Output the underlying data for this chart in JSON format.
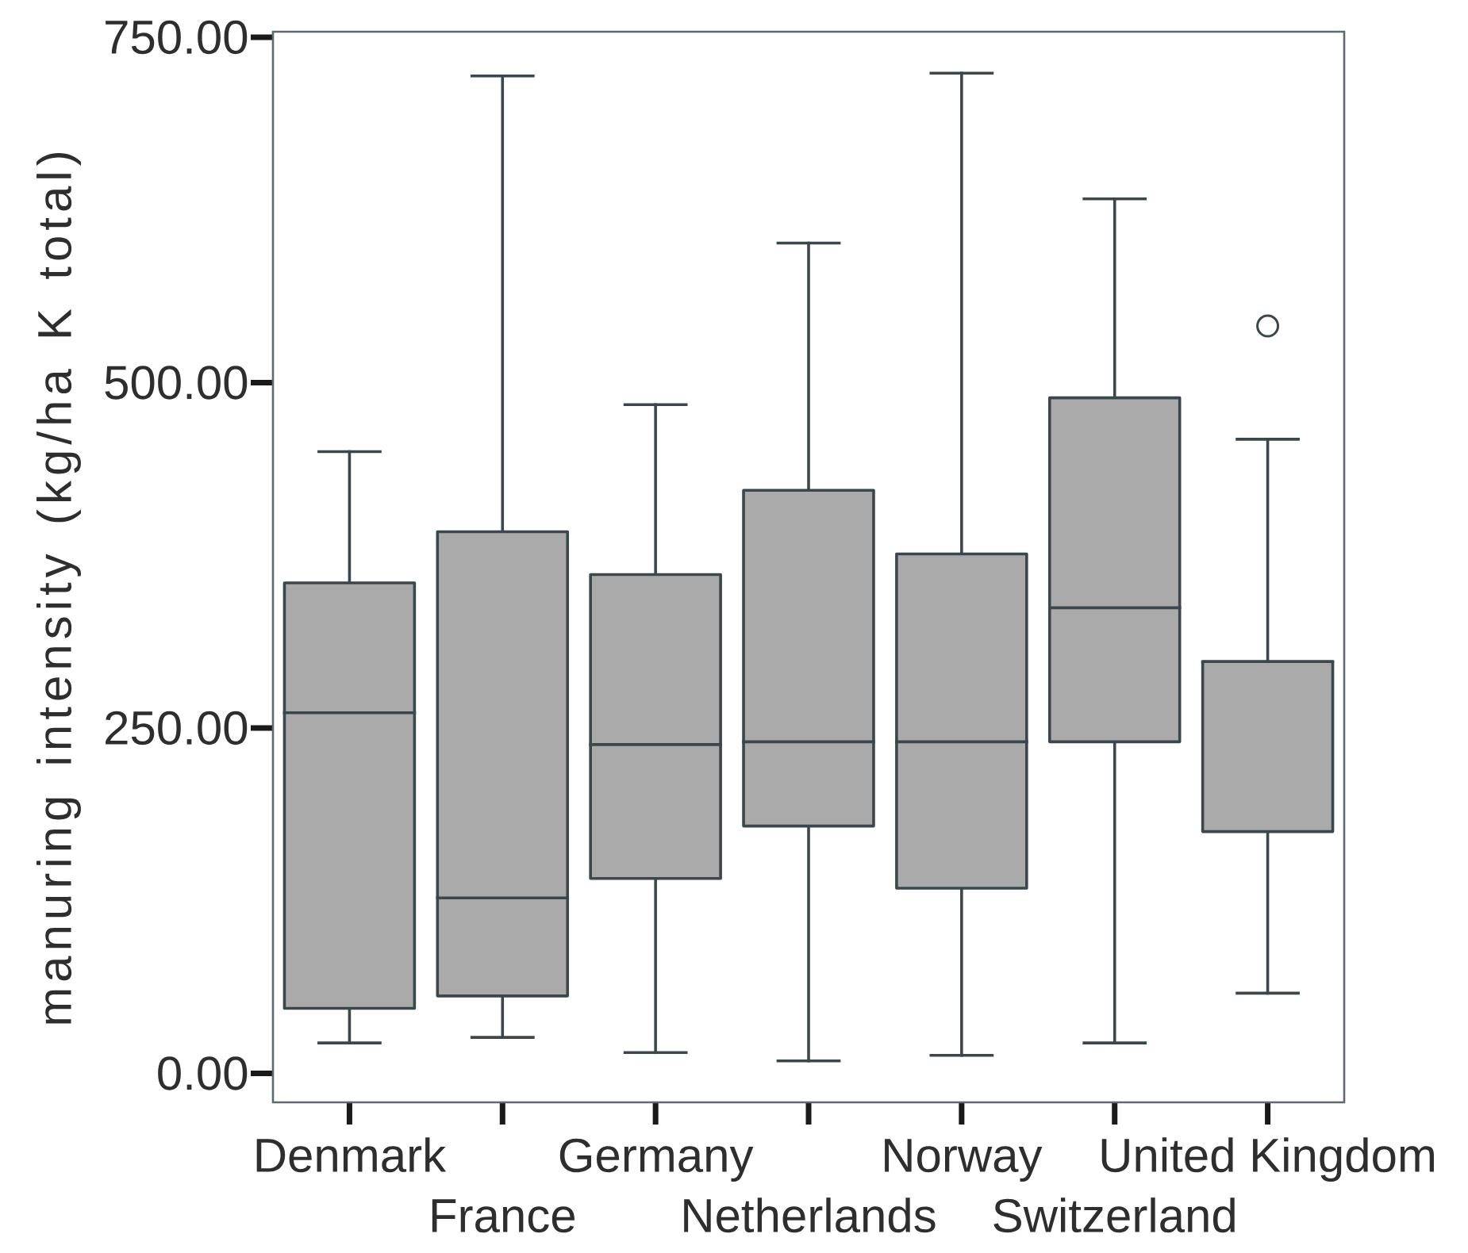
{
  "chart_data": {
    "type": "box",
    "ylabel": "manuring intensity (kg/ha K total)",
    "categories": [
      "Denmark",
      "France",
      "Germany",
      "Netherlands",
      "Norway",
      "Switzerland",
      "United Kingdom"
    ],
    "boxes": [
      {
        "low": 22,
        "q1": 47,
        "median": 261,
        "q3": 355,
        "high": 450
      },
      {
        "low": 26,
        "q1": 56,
        "median": 127,
        "q3": 392,
        "high": 722
      },
      {
        "low": 15,
        "q1": 141,
        "median": 238,
        "q3": 361,
        "high": 484
      },
      {
        "low": 9,
        "q1": 179,
        "median": 240,
        "q3": 422,
        "high": 601
      },
      {
        "low": 13,
        "q1": 134,
        "median": 240,
        "q3": 376,
        "high": 724
      },
      {
        "low": 22,
        "q1": 240,
        "median": 337,
        "q3": 489,
        "high": 633
      },
      {
        "low": 58,
        "q1": 175,
        "median": 298,
        "q3": 298,
        "high": 459,
        "outliers": [
          541
        ]
      }
    ],
    "color": "#aaaaaa",
    "ylim": [
      -21,
      754
    ],
    "yticks": [
      {
        "value": 0,
        "label": "0.00"
      },
      {
        "value": 250,
        "label": "250.00"
      },
      {
        "value": 500,
        "label": "500.00"
      },
      {
        "value": 750,
        "label": "750.00"
      }
    ]
  }
}
